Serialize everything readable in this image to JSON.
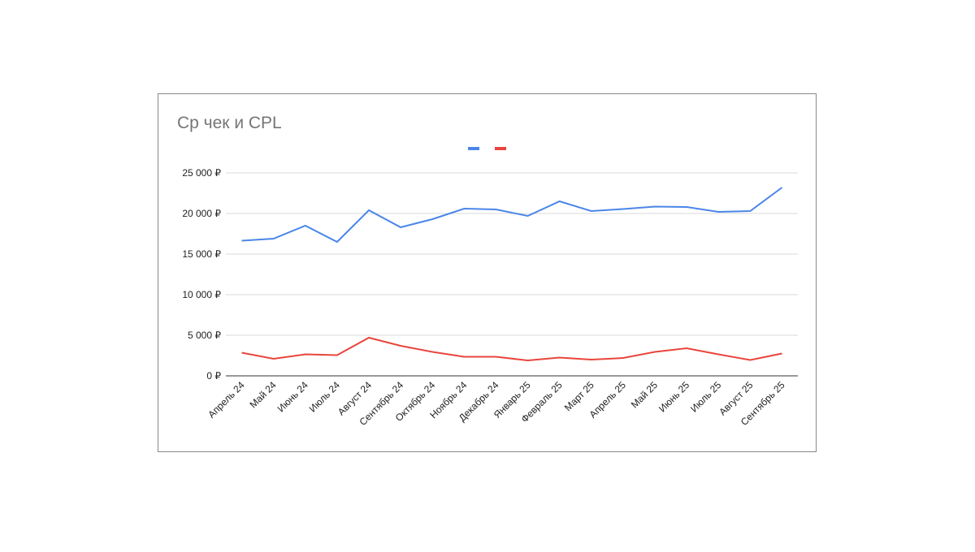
{
  "chart_data": {
    "type": "line",
    "title": "Ср чек и CPL",
    "categories": [
      "Апрель 24",
      "Май 24",
      "Июнь 24",
      "Июль 24",
      "Август 24",
      "Сентябрь 24",
      "Октябрь 24",
      "Ноябрь 24",
      "Декабрь 24",
      "Январь 25",
      "Февраль 25",
      "Март 25",
      "Апрель 25",
      "Май 25",
      "Июнь 25",
      "Июль 25",
      "Август 25",
      "Сентябрь 25"
    ],
    "series": [
      {
        "color": "#4a86e8",
        "values": [
          16650,
          16900,
          18500,
          16500,
          20400,
          18300,
          19300,
          20600,
          20500,
          19700,
          21500,
          20300,
          20550,
          20850,
          20800,
          20200,
          20300,
          23200
        ]
      },
      {
        "color": "#e8453c",
        "values": [
          2850,
          2100,
          2650,
          2550,
          4700,
          3700,
          2950,
          2350,
          2350,
          1900,
          2250,
          2000,
          2200,
          2950,
          3400,
          2650,
          1950,
          2750
        ]
      }
    ],
    "ylim": [
      0,
      25000
    ],
    "yticks": [
      {
        "value": 0,
        "label": "0 ₽"
      },
      {
        "value": 5000,
        "label": "5 000 ₽"
      },
      {
        "value": 10000,
        "label": "10 000 ₽"
      },
      {
        "value": 15000,
        "label": "15 000 ₽"
      },
      {
        "value": 20000,
        "label": "20 000 ₽"
      },
      {
        "value": 25000,
        "label": "25 000 ₽"
      }
    ],
    "grid": true
  }
}
